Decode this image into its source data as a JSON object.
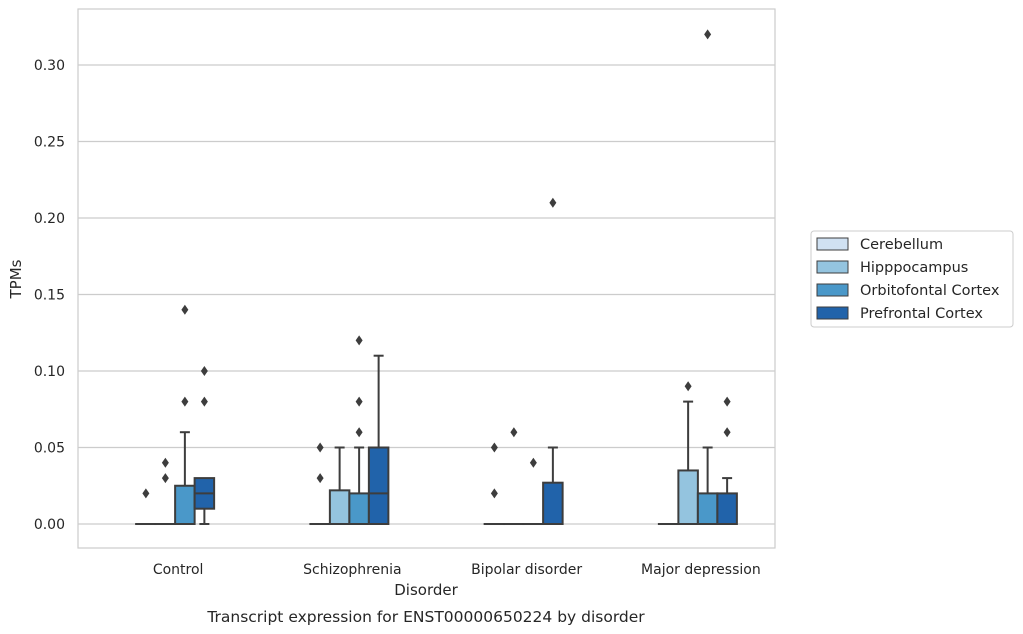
{
  "chart_data": {
    "type": "box",
    "title": "",
    "caption": "Transcript expression for ENST00000650224 by disorder",
    "xlabel": "Disorder",
    "ylabel": "TPMs",
    "ylim": [
      -0.016,
      0.337
    ],
    "yticks": [
      "0.00",
      "0.05",
      "0.10",
      "0.15",
      "0.20",
      "0.25",
      "0.30"
    ],
    "grid": "horizontal",
    "legend_position": "right",
    "categories": [
      "Control",
      "Schizophrenia",
      "Bipolar disorder",
      "Major depression"
    ],
    "series": [
      {
        "name": "Cerebellum",
        "color": "#d0e1f2",
        "boxes": [
          {
            "q1": 0,
            "median": 0,
            "q3": 0,
            "whisker_low": 0,
            "whisker_high": 0,
            "outliers": [
              0.02
            ]
          },
          {
            "q1": 0,
            "median": 0,
            "q3": 0,
            "whisker_low": 0,
            "whisker_high": 0,
            "outliers": [
              0.03,
              0.05
            ]
          },
          {
            "q1": 0,
            "median": 0,
            "q3": 0,
            "whisker_low": 0,
            "whisker_high": 0,
            "outliers": [
              0.02,
              0.05
            ]
          },
          {
            "q1": 0,
            "median": 0,
            "q3": 0,
            "whisker_low": 0,
            "whisker_high": 0,
            "outliers": []
          }
        ]
      },
      {
        "name": "Hipppocampus",
        "color": "#94c4df",
        "boxes": [
          {
            "q1": 0,
            "median": 0,
            "q3": 0,
            "whisker_low": 0,
            "whisker_high": 0,
            "outliers": [
              0.03,
              0.04
            ]
          },
          {
            "q1": 0,
            "median": 0,
            "q3": 0.022,
            "whisker_low": 0,
            "whisker_high": 0.05,
            "outliers": []
          },
          {
            "q1": 0,
            "median": 0,
            "q3": 0,
            "whisker_low": 0,
            "whisker_high": 0,
            "outliers": [
              0.06
            ]
          },
          {
            "q1": 0,
            "median": 0,
            "q3": 0.035,
            "whisker_low": 0,
            "whisker_high": 0.08,
            "outliers": [
              0.09
            ]
          }
        ]
      },
      {
        "name": "Orbitofontal Cortex",
        "color": "#4a98c9",
        "boxes": [
          {
            "q1": 0,
            "median": 0,
            "q3": 0.025,
            "whisker_low": 0,
            "whisker_high": 0.06,
            "outliers": [
              0.08,
              0.14
            ]
          },
          {
            "q1": 0,
            "median": 0,
            "q3": 0.02,
            "whisker_low": 0,
            "whisker_high": 0.05,
            "outliers": [
              0.06,
              0.08,
              0.12
            ]
          },
          {
            "q1": 0,
            "median": 0,
            "q3": 0,
            "whisker_low": 0,
            "whisker_high": 0,
            "outliers": [
              0.04
            ]
          },
          {
            "q1": 0,
            "median": 0,
            "q3": 0.02,
            "whisker_low": 0,
            "whisker_high": 0.05,
            "outliers": [
              0.32
            ]
          }
        ]
      },
      {
        "name": "Prefrontal Cortex",
        "color": "#2163aa",
        "boxes": [
          {
            "q1": 0.01,
            "median": 0.02,
            "q3": 0.03,
            "whisker_low": 0,
            "whisker_high": 0.03,
            "outliers": [
              0.08,
              0.1
            ]
          },
          {
            "q1": 0,
            "median": 0.02,
            "q3": 0.05,
            "whisker_low": 0,
            "whisker_high": 0.11,
            "outliers": []
          },
          {
            "q1": 0,
            "median": 0,
            "q3": 0.027,
            "whisker_low": 0,
            "whisker_high": 0.05,
            "outliers": [
              0.21
            ]
          },
          {
            "q1": 0,
            "median": 0,
            "q3": 0.02,
            "whisker_low": 0,
            "whisker_high": 0.03,
            "outliers": [
              0.06,
              0.08
            ]
          }
        ]
      }
    ]
  }
}
